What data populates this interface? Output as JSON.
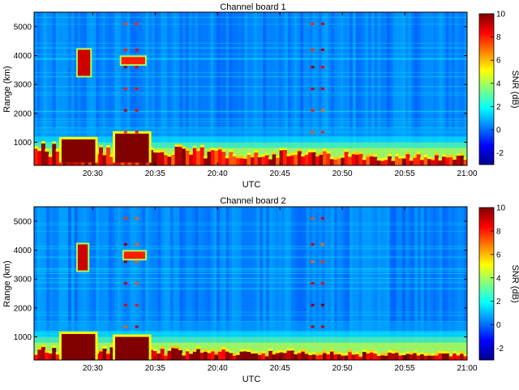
{
  "chart_data": [
    {
      "type": "heatmap",
      "title": "Channel board 1",
      "xlabel": "UTC",
      "ylabel": "Range (km)",
      "colorbar_label": "SNR (dB)",
      "x_ticks": [
        "20:30",
        "20:35",
        "20:40",
        "20:45",
        "20:50",
        "20:55",
        "21:00"
      ],
      "y_ticks": [
        "1000",
        "2000",
        "3000",
        "4000",
        "5000"
      ],
      "colorbar_ticks": [
        "-2",
        "0",
        "2",
        "4",
        "6",
        "8",
        "10"
      ],
      "x_range_minutes": [
        25.3,
        60.0
      ],
      "y_range_km": [
        200,
        5500
      ],
      "clim_db": [
        -3,
        10
      ],
      "features": [
        {
          "t0": 25.3,
          "t1": 60.0,
          "r0": 200,
          "r1": 1000,
          "snr": 7,
          "label": "near-range clutter band"
        },
        {
          "t0": 28.8,
          "t1": 29.8,
          "r0": 3300,
          "r1": 4200,
          "snr": 9,
          "label": "echo"
        },
        {
          "t0": 32.3,
          "t1": 34.2,
          "r0": 3700,
          "r1": 3950,
          "snr": 8,
          "label": "echo"
        },
        {
          "t0": 27.5,
          "t1": 30.2,
          "r0": 300,
          "r1": 1100,
          "snr": 10,
          "label": "strong clutter"
        },
        {
          "t0": 31.8,
          "t1": 34.5,
          "r0": 300,
          "r1": 1300,
          "snr": 10,
          "label": "strong clutter"
        }
      ]
    },
    {
      "type": "heatmap",
      "title": "Channel board 2",
      "xlabel": "UTC",
      "ylabel": "Range (km)",
      "colorbar_label": "SNR (dB)",
      "x_ticks": [
        "20:30",
        "20:35",
        "20:40",
        "20:45",
        "20:50",
        "20:55",
        "21:00"
      ],
      "y_ticks": [
        "1000",
        "2000",
        "3000",
        "4000",
        "5000"
      ],
      "colorbar_ticks": [
        "-2",
        "0",
        "2",
        "4",
        "6",
        "8",
        "10"
      ],
      "x_range_minutes": [
        25.3,
        60.0
      ],
      "y_range_km": [
        200,
        5500
      ],
      "clim_db": [
        -3,
        10
      ],
      "features": [
        {
          "t0": 25.3,
          "t1": 60.0,
          "r0": 200,
          "r1": 700,
          "snr": 8,
          "label": "near-range clutter band"
        },
        {
          "t0": 28.8,
          "t1": 29.6,
          "r0": 3300,
          "r1": 4200,
          "snr": 9,
          "label": "echo"
        },
        {
          "t0": 32.5,
          "t1": 34.2,
          "r0": 3700,
          "r1": 3950,
          "snr": 8,
          "label": "echo"
        },
        {
          "t0": 27.5,
          "t1": 30.2,
          "r0": 200,
          "r1": 1100,
          "snr": 10,
          "label": "strong clutter"
        },
        {
          "t0": 31.8,
          "t1": 34.5,
          "r0": 200,
          "r1": 1000,
          "snr": 10,
          "label": "strong clutter"
        }
      ]
    }
  ],
  "colors": {
    "background_field": "#2f86d6",
    "clutter_low": "#ffe14a",
    "clutter_high": "#c0000a",
    "axis": "#000000"
  }
}
